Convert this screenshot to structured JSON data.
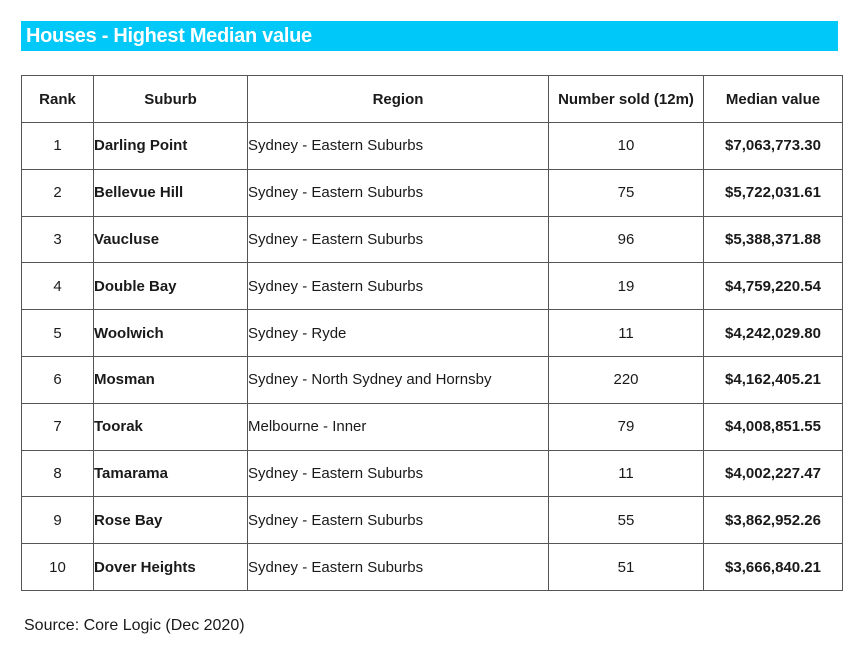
{
  "title": "Houses - Highest Median value",
  "table": {
    "headers": {
      "rank": "Rank",
      "suburb": "Suburb",
      "region": "Region",
      "sold": "Number sold (12m)",
      "value": "Median value"
    },
    "rows": [
      {
        "rank": "1",
        "suburb": "Darling Point",
        "region": "Sydney - Eastern Suburbs",
        "sold": "10",
        "value": "$7,063,773.30"
      },
      {
        "rank": "2",
        "suburb": "Bellevue Hill",
        "region": "Sydney - Eastern Suburbs",
        "sold": "75",
        "value": "$5,722,031.61"
      },
      {
        "rank": "3",
        "suburb": "Vaucluse",
        "region": "Sydney - Eastern Suburbs",
        "sold": "96",
        "value": "$5,388,371.88"
      },
      {
        "rank": "4",
        "suburb": "Double Bay",
        "region": "Sydney - Eastern Suburbs",
        "sold": "19",
        "value": "$4,759,220.54"
      },
      {
        "rank": "5",
        "suburb": "Woolwich",
        "region": "Sydney - Ryde",
        "sold": "11",
        "value": "$4,242,029.80"
      },
      {
        "rank": "6",
        "suburb": "Mosman",
        "region": "Sydney - North Sydney and Hornsby",
        "sold": "220",
        "value": "$4,162,405.21"
      },
      {
        "rank": "7",
        "suburb": "Toorak",
        "region": "Melbourne - Inner",
        "sold": "79",
        "value": "$4,008,851.55"
      },
      {
        "rank": "8",
        "suburb": "Tamarama",
        "region": "Sydney - Eastern Suburbs",
        "sold": "11",
        "value": "$4,002,227.47"
      },
      {
        "rank": "9",
        "suburb": "Rose Bay",
        "region": "Sydney - Eastern Suburbs",
        "sold": "55",
        "value": "$3,862,952.26"
      },
      {
        "rank": "10",
        "suburb": "Dover Heights",
        "region": "Sydney - Eastern Suburbs",
        "sold": "51",
        "value": "$3,666,840.21"
      }
    ]
  },
  "source": "Source: Core Logic (Dec 2020)",
  "colors": {
    "banner": "#00c8f8",
    "banner_text": "#ffffff",
    "border": "#555555"
  }
}
